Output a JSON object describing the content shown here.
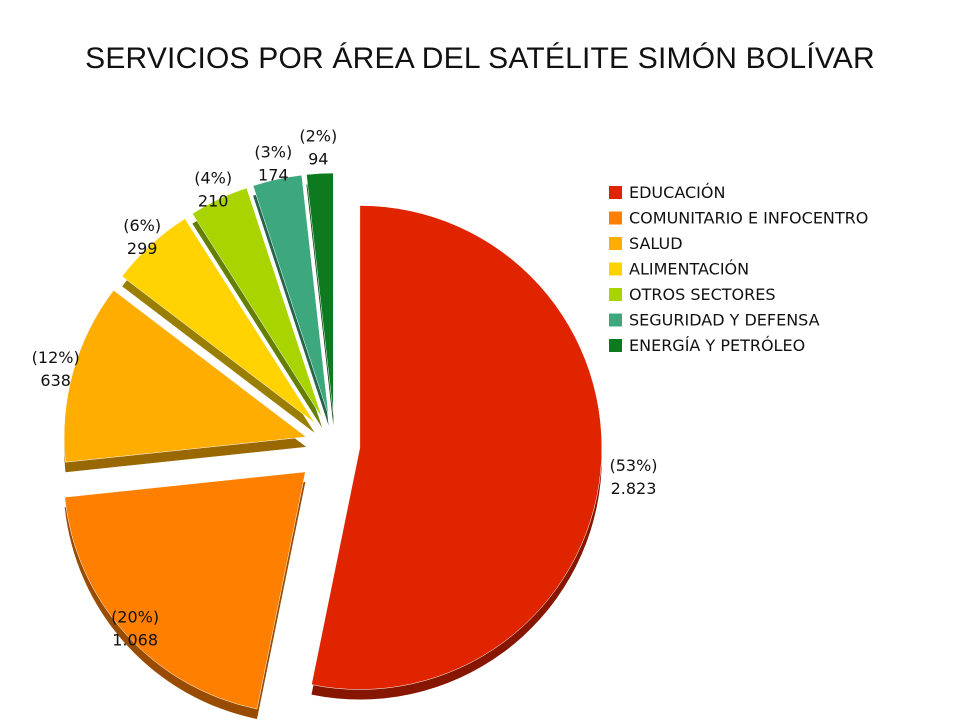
{
  "chart_data": {
    "type": "pie",
    "title": "SERVICIOS POR ÁREA DEL SATÉLITE SIMÓN BOLÍVAR",
    "slices": [
      {
        "name": "EDUCACIÓN",
        "value": 2823,
        "value_label": "2.823",
        "percent_label": "(53%)",
        "color": "#e02400"
      },
      {
        "name": "COMUNITARIO E INFOCENTRO",
        "value": 1068,
        "value_label": "1.068",
        "percent_label": "(20%)",
        "color": "#ff7f00"
      },
      {
        "name": "SALUD",
        "value": 638,
        "value_label": "638",
        "percent_label": "(12%)",
        "color": "#ffad00"
      },
      {
        "name": "ALIMENTACIÓN",
        "value": 299,
        "value_label": "299",
        "percent_label": "(6%)",
        "color": "#ffd200"
      },
      {
        "name": "OTROS SECTORES",
        "value": 210,
        "value_label": "210",
        "percent_label": "(4%)",
        "color": "#a9d400"
      },
      {
        "name": "SEGURIDAD Y DEFENSA",
        "value": 174,
        "value_label": "174",
        "percent_label": "(3%)",
        "color": "#3da87e"
      },
      {
        "name": "ENERGÍA Y PETRÓLEO",
        "value": 94,
        "value_label": "94",
        "percent_label": "(2%)",
        "color": "#0d7a1f"
      }
    ],
    "legend_position": "right",
    "exploded": true,
    "three_d": true
  }
}
